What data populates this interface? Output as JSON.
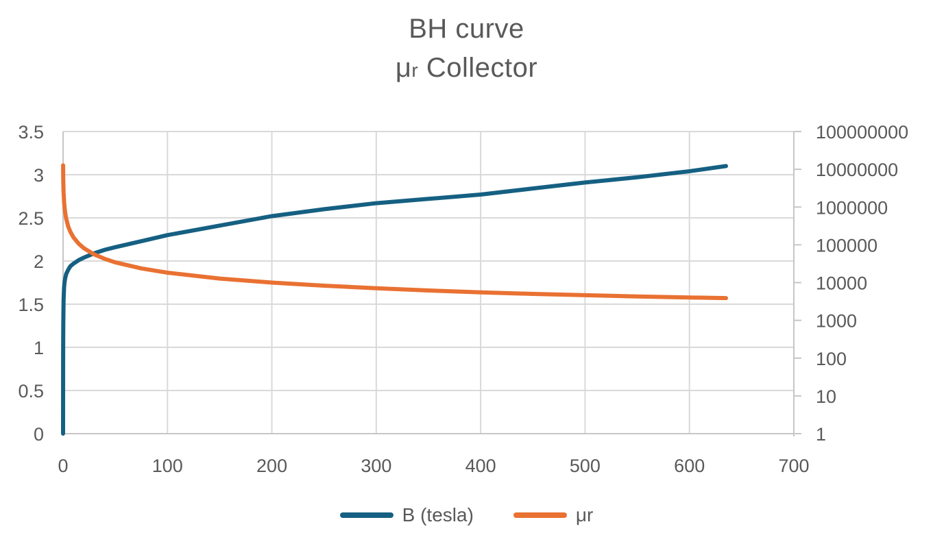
{
  "header": {
    "title_line1": "BH curve",
    "title_line2_mu": "μ",
    "title_line2_sub": "r",
    "title_line2_rest": " Collector"
  },
  "chart_data": {
    "type": "line",
    "title": "BH curve — μr Collector",
    "grid": true,
    "legend_position": "bottom",
    "x_axis": {
      "min": 0,
      "max": 700,
      "ticks": [
        0,
        100,
        200,
        300,
        400,
        500,
        600,
        700
      ]
    },
    "y_axis_left": {
      "min": 0,
      "max": 3.5,
      "scale": "linear",
      "ticks": [
        0,
        0.5,
        1,
        1.5,
        2,
        2.5,
        3,
        3.5
      ]
    },
    "y_axis_right": {
      "min": 1,
      "max": 100000000,
      "scale": "log",
      "ticks": [
        1,
        10,
        100,
        1000,
        10000,
        100000,
        1000000,
        10000000,
        100000000
      ]
    },
    "series": [
      {
        "name": "B (tesla)",
        "axis": "left",
        "color": "#156082",
        "x": [
          0,
          0.05,
          0.1,
          0.2,
          0.5,
          1,
          1.5,
          2,
          3,
          5,
          7,
          10,
          15,
          20,
          30,
          40,
          50,
          75,
          100,
          150,
          200,
          250,
          300,
          350,
          400,
          450,
          500,
          550,
          600,
          635
        ],
        "y": [
          0,
          0.8,
          1.0,
          1.25,
          1.55,
          1.7,
          1.76,
          1.8,
          1.85,
          1.9,
          1.94,
          1.97,
          2.01,
          2.04,
          2.09,
          2.13,
          2.16,
          2.23,
          2.3,
          2.41,
          2.52,
          2.6,
          2.67,
          2.72,
          2.77,
          2.84,
          2.91,
          2.97,
          3.04,
          3.1
        ]
      },
      {
        "name": "μr",
        "axis": "right",
        "color": "#E97132",
        "x": [
          0.05,
          0.1,
          0.2,
          0.5,
          1,
          1.5,
          2,
          3,
          5,
          7,
          10,
          15,
          20,
          30,
          40,
          50,
          75,
          100,
          150,
          200,
          250,
          300,
          350,
          400,
          450,
          500,
          550,
          600,
          635
        ],
        "y": [
          12700000,
          7960000,
          4970000,
          2470000,
          1353000,
          934000,
          716000,
          491000,
          302000,
          221000,
          157000,
          107000,
          81200,
          55400,
          42400,
          34400,
          23700,
          18300,
          12800,
          10000,
          8280,
          7080,
          6180,
          5510,
          5020,
          4630,
          4300,
          4030,
          3880
        ]
      }
    ]
  },
  "colors": {
    "text": "#595959",
    "gridline": "#D9D9D9",
    "axis_line": "#C6C6C6",
    "background": "#FFFFFF"
  }
}
